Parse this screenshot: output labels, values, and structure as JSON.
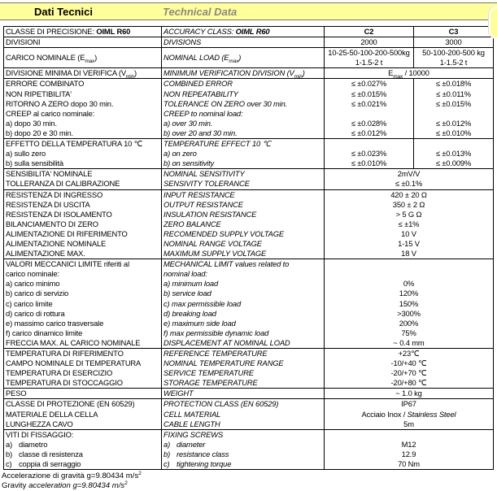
{
  "header": {
    "title_it": "Dati Tecnici",
    "title_en": "Technical Data",
    "background": "#ffff99"
  },
  "groups": [
    {
      "rows": [
        [
          [
            "CLASSE DI PRECISIONE: ",
            {
              "t": "OIML R60",
              "f": "b"
            }
          ],
          [
            "ACCURACY CLASS: ",
            {
              "t": "OIML R60",
              "f": "b"
            }
          ],
          [
            {
              "t": "C2",
              "f": "b"
            }
          ],
          [
            {
              "t": "C3",
              "f": "b"
            }
          ]
        ]
      ]
    },
    {
      "rows": [
        [
          "DIVISIONI",
          "DIVISIONS",
          "2000",
          "3000"
        ]
      ]
    },
    {
      "rows": [
        [
          [
            "CARICO NOMINALE (E",
            {
              "t": "max",
              "f": "sub"
            },
            ")"
          ],
          [
            "NOMINAL LOAD (E",
            {
              "t": "max",
              "f": "sub"
            },
            ")"
          ],
          "10-25-50-100-200-500kg\n1-1.5-2 t",
          "50-100-200-500 kg\n1-1.5-2 t"
        ]
      ]
    },
    {
      "rows": [
        [
          [
            "DIVISIONE MINIMA DI VERIFICA (V",
            {
              "t": "min",
              "f": "sub"
            },
            ")"
          ],
          [
            "MINIMUM VERIFICATION DIVISION (V",
            {
              "t": "min",
              "f": "sub"
            },
            ")"
          ],
          [
            "E",
            {
              "t": "max",
              "f": "sub"
            },
            " / 10000"
          ]
        ]
      ]
    },
    {
      "rows": [
        [
          "ERRORE COMBINATO",
          "COMBINED ERROR",
          "≤ ±0.027%",
          "≤ ±0.018%"
        ],
        [
          "NON RIPETIBILITA'",
          "NON REPEATABILITY",
          "≤ ±0.015%",
          "≤ ±0.011%"
        ],
        [
          "RITORNO A ZERO dopo 30 min.",
          "TOLERANCE ON ZERO over 30 min.",
          "≤ ±0.021%",
          "≤ ±0.015%"
        ],
        [
          "CREEP al carico nominale:",
          "CREEP to nominal load:",
          "",
          ""
        ],
        [
          "a) dopo 30 min.",
          "a) over 30 min.",
          "≤ ±0.028%",
          "≤ ±0.012%"
        ],
        [
          "b) dopo 20 e 30 min.",
          "b) over 20 and 30 min.",
          "≤ ±0.012%",
          "≤ ±0.010%"
        ]
      ]
    },
    {
      "rows": [
        [
          "EFFETTO DELLA TEMPERATURA 10 ℃",
          "TEMPERATURE EFFECT 10 ℃",
          "",
          ""
        ],
        [
          "a) sullo zero",
          "a) on zero",
          "≤ ±0.023%",
          "≤ ±0.013%"
        ],
        [
          "b) sulla sensibilità",
          "b) on sensitivity",
          "≤ ±0.010%",
          "≤ ±0.009%"
        ]
      ]
    },
    {
      "rows": [
        [
          "SENSIBILITA' NOMINALE",
          "NOMINAL SENSITIVITY",
          "2mV/V"
        ],
        [
          "TOLLERANZA DI CALIBRAZIONE",
          "SENSIVITY TOLERANCE",
          "≤ ±0.1%"
        ]
      ]
    },
    {
      "rows": [
        [
          "RESISTENZA DI INGRESSO",
          "INPUT RESISTANCE",
          "420 ± 20 Ω"
        ],
        [
          "RESISTENZA DI USCITA",
          "OUTPUT RESISTANCE",
          "350 ± 2 Ω"
        ],
        [
          "RESISTENZA DI ISOLAMENTO",
          "INSULATION RESISTANCE",
          "> 5 G Ω"
        ],
        [
          "BILANCIAMENTO DI ZERO",
          "ZERO BALANCE",
          "≤ ±1%"
        ],
        [
          "ALIMENTAZIONE DI RIFERIMENTO",
          "RECOMENDED SUPPLY VOLTAGE",
          "10 V"
        ],
        [
          "ALIMENTAZIONE NOMINALE",
          "NOMINAL RANGE VOLTAGE",
          "1-15 V"
        ],
        [
          "ALIMENTAZIONE MAX.",
          "MAXIMUM SUPPLY VOLTAGE",
          "18 V"
        ]
      ]
    },
    {
      "rows": [
        [
          "VALORI MECCANICI LIMITE riferiti al",
          "MECHANICAL LIMIT values related to",
          ""
        ],
        [
          "carico nominale:",
          "nominal load:",
          ""
        ],
        [
          "a) carico minimo",
          "a) minimum load",
          "0%"
        ],
        [
          "b) carico di servizio",
          "b) service load",
          "120%"
        ],
        [
          "c) carico limite",
          "c) max permissible load",
          "150%"
        ],
        [
          "d) carico di rottura",
          "d) breaking load",
          ">300%"
        ],
        [
          "e) massimo carico trasversale",
          "e) maximum side load",
          "200%"
        ],
        [
          "f) carico dinamico  limite",
          "f) max permissible dynamic load",
          "75%"
        ],
        [
          "FRECCIA MAX. AL CARICO NOMINALE",
          "DISPLACEMENT AT NOMINAL LOAD",
          "~ 0.4 mm"
        ]
      ]
    },
    {
      "rows": [
        [
          "TEMPERATURA DI RIFERIMENTO",
          "REFERENCE TEMPERATURE",
          "+23℃"
        ],
        [
          "CAMPO NOMINALE DI TEMPERATURA",
          "NOMINAL TEMPERATURE RANGE",
          "-10/+40 ℃"
        ],
        [
          "TEMPERATURA DI ESERCIZIO",
          "SERVICE TEMPERATURE",
          "-20/+70 ℃"
        ],
        [
          "TEMPERATURA DI STOCCAGGIO",
          "STORAGE TEMPERATURE",
          "-20/+80 ℃"
        ]
      ]
    },
    {
      "rows": [
        [
          "PESO",
          "WEIGHT",
          "~ 1.0 kg"
        ]
      ]
    },
    {
      "rows": [
        [
          "CLASSE DI PROTEZIONE (EN 60529)",
          "PROTECTION CLASS (EN 60529)",
          "IP67"
        ],
        [
          "MATERIALE DELLA CELLA",
          "CELL MATERIAL",
          [
            "Acciaio Inox / ",
            {
              "t": "Stainless Steel",
              "f": "i"
            }
          ]
        ],
        [
          "LUNGHEZZA CAVO",
          "CABLE LENGTH",
          "5m"
        ]
      ]
    },
    {
      "rows": [
        [
          "VITI DI FISSAGGIO:",
          "FIXING SCREWS",
          ""
        ],
        [
          [
            {
              "t": "a)",
              "f": "lt"
            },
            "diametro"
          ],
          [
            {
              "t": "a)",
              "f": "lt"
            },
            "diameter"
          ],
          "M12"
        ],
        [
          [
            {
              "t": "b)",
              "f": "lt"
            },
            "classe di resistenza"
          ],
          [
            {
              "t": "b)",
              "f": "lt"
            },
            "resistance class"
          ],
          "12.9"
        ],
        [
          [
            {
              "t": "c)",
              "f": "lt"
            },
            "coppia di serraggio"
          ],
          [
            {
              "t": "c)",
              "f": "lt"
            },
            "tightening torque"
          ],
          "70 Nm"
        ]
      ]
    }
  ],
  "footnotes": {
    "it": [
      "Accelerazione di gravità g=9.80434 m/s",
      {
        "t": "2",
        "f": "sup"
      }
    ],
    "en": [
      "Gravity ",
      {
        "t": "acceleration g=9.80434 m/s",
        "f": "i"
      },
      {
        "t": "2",
        "f": "sup"
      }
    ]
  }
}
